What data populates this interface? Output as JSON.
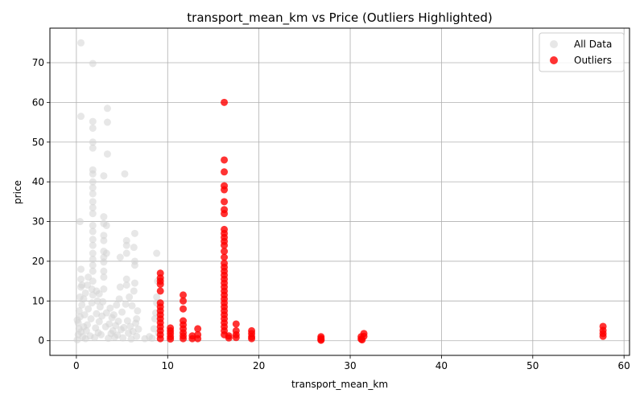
{
  "chart_data": {
    "type": "scatter",
    "title": "transport_mean_km vs Price (Outliers Highlighted)",
    "xlabel": "transport_mean_km",
    "ylabel": "price",
    "xlim": [
      -2.9,
      60.6
    ],
    "ylim": [
      -3.7,
      78.7
    ],
    "xticks": [
      0,
      10,
      20,
      30,
      40,
      50,
      60
    ],
    "yticks": [
      0,
      10,
      20,
      30,
      40,
      50,
      60,
      70
    ],
    "grid": true,
    "legend_position": "top-right",
    "series": [
      {
        "name": "All Data",
        "color": "#d3d3d3",
        "points": [
          [
            0.1,
            0.2
          ],
          [
            0.2,
            1.5
          ],
          [
            0.3,
            3.0
          ],
          [
            0.2,
            4.5
          ],
          [
            0.4,
            6.0
          ],
          [
            0.3,
            7.5
          ],
          [
            0.5,
            2.2
          ],
          [
            0.1,
            5.2
          ],
          [
            0.6,
            9.0
          ],
          [
            0.4,
            11.0
          ],
          [
            0.5,
            13.5
          ],
          [
            0.5,
            15.5
          ],
          [
            0.6,
            14.0
          ],
          [
            0.5,
            18.0
          ],
          [
            0.4,
            30.0
          ],
          [
            0.5,
            56.5
          ],
          [
            0.5,
            75.0
          ],
          [
            0.7,
            1.0
          ],
          [
            0.8,
            3.5
          ],
          [
            0.9,
            6.5
          ],
          [
            0.8,
            10.5
          ],
          [
            1.0,
            0.5
          ],
          [
            1.1,
            2.5
          ],
          [
            1.2,
            4.0
          ],
          [
            1.3,
            8.0
          ],
          [
            1.0,
            12.0
          ],
          [
            1.2,
            14.0
          ],
          [
            1.3,
            16.0
          ],
          [
            1.5,
            1.2
          ],
          [
            1.6,
            5.5
          ],
          [
            1.7,
            9.5
          ],
          [
            1.8,
            11.5
          ],
          [
            1.7,
            13.0
          ],
          [
            1.8,
            15.0
          ],
          [
            1.8,
            17.5
          ],
          [
            1.8,
            19.0
          ],
          [
            1.8,
            20.5
          ],
          [
            1.8,
            22.0
          ],
          [
            1.8,
            24.0
          ],
          [
            1.8,
            25.5
          ],
          [
            1.8,
            27.5
          ],
          [
            1.8,
            29.0
          ],
          [
            1.8,
            32.0
          ],
          [
            1.8,
            33.5
          ],
          [
            1.8,
            35.0
          ],
          [
            1.8,
            37.0
          ],
          [
            1.8,
            38.5
          ],
          [
            1.8,
            40.0
          ],
          [
            1.8,
            42.0
          ],
          [
            1.8,
            43.0
          ],
          [
            1.8,
            48.5
          ],
          [
            1.8,
            50.0
          ],
          [
            1.8,
            53.5
          ],
          [
            1.8,
            55.2
          ],
          [
            1.8,
            69.8
          ],
          [
            2.0,
            0.8
          ],
          [
            2.1,
            3.2
          ],
          [
            2.2,
            6.8
          ],
          [
            2.3,
            10.0
          ],
          [
            2.2,
            12.5
          ],
          [
            2.4,
            2.0
          ],
          [
            2.5,
            4.8
          ],
          [
            2.6,
            8.5
          ],
          [
            2.5,
            11.8
          ],
          [
            2.7,
            1.5
          ],
          [
            2.8,
            6.2
          ],
          [
            2.9,
            9.8
          ],
          [
            3.0,
            13.0
          ],
          [
            3.0,
            16.0
          ],
          [
            3.0,
            17.5
          ],
          [
            3.0,
            19.8
          ],
          [
            3.0,
            21.0
          ],
          [
            3.0,
            22.5
          ],
          [
            3.0,
            25.2
          ],
          [
            3.0,
            26.5
          ],
          [
            3.0,
            29.5
          ],
          [
            3.0,
            31.2
          ],
          [
            3.0,
            41.5
          ],
          [
            3.3,
            22.0
          ],
          [
            3.3,
            29.0
          ],
          [
            3.4,
            47.0
          ],
          [
            3.4,
            55.0
          ],
          [
            3.4,
            58.5
          ],
          [
            3.2,
            3.5
          ],
          [
            3.3,
            7.0
          ],
          [
            3.5,
            0.6
          ],
          [
            3.6,
            4.2
          ],
          [
            3.7,
            8.2
          ],
          [
            3.8,
            1.8
          ],
          [
            3.9,
            5.8
          ],
          [
            4.0,
            2.5
          ],
          [
            4.1,
            6.5
          ],
          [
            4.2,
            0.9
          ],
          [
            4.3,
            3.8
          ],
          [
            4.4,
            9.0
          ],
          [
            4.5,
            1.4
          ],
          [
            4.6,
            4.9
          ],
          [
            4.7,
            10.5
          ],
          [
            4.8,
            13.5
          ],
          [
            4.9,
            2.8
          ],
          [
            4.8,
            21.0
          ],
          [
            5.0,
            7.2
          ],
          [
            5.1,
            0.7
          ],
          [
            5.2,
            3.3
          ],
          [
            5.3,
            42.0
          ],
          [
            5.4,
            9.2
          ],
          [
            5.5,
            15.5
          ],
          [
            5.5,
            14.0
          ],
          [
            5.5,
            24.0
          ],
          [
            5.5,
            25.2
          ],
          [
            5.5,
            22.0
          ],
          [
            5.6,
            5.0
          ],
          [
            5.7,
            1.9
          ],
          [
            5.8,
            11.0
          ],
          [
            5.9,
            3.6
          ],
          [
            6.0,
            0.4
          ],
          [
            6.1,
            8.8
          ],
          [
            6.2,
            2.3
          ],
          [
            6.3,
            12.5
          ],
          [
            6.4,
            27.0
          ],
          [
            6.3,
            23.5
          ],
          [
            6.4,
            20.0
          ],
          [
            6.4,
            19.0
          ],
          [
            6.4,
            14.5
          ],
          [
            6.5,
            4.4
          ],
          [
            6.6,
            1.1
          ],
          [
            6.7,
            7.5
          ],
          [
            6.6,
            5.5
          ],
          [
            6.8,
            2.9
          ],
          [
            7.5,
            0.5
          ],
          [
            8.0,
            1.0
          ],
          [
            8.3,
            0.6
          ],
          [
            8.5,
            3.0
          ],
          [
            8.6,
            5.5
          ],
          [
            8.7,
            7.0
          ],
          [
            8.8,
            9.5
          ],
          [
            8.8,
            11.0
          ],
          [
            8.9,
            15.0
          ],
          [
            8.8,
            22.0
          ],
          [
            9.0,
            1.8
          ]
        ]
      },
      {
        "name": "Outliers",
        "color": "#ff0000",
        "points": [
          [
            9.2,
            17.0
          ],
          [
            9.2,
            15.8
          ],
          [
            9.2,
            15.0
          ],
          [
            9.2,
            14.2
          ],
          [
            9.2,
            12.5
          ],
          [
            9.2,
            9.5
          ],
          [
            9.2,
            8.5
          ],
          [
            9.2,
            7.5
          ],
          [
            9.2,
            6.5
          ],
          [
            9.2,
            5.5
          ],
          [
            9.2,
            4.5
          ],
          [
            9.2,
            3.5
          ],
          [
            9.2,
            2.5
          ],
          [
            9.2,
            1.5
          ],
          [
            9.2,
            0.5
          ],
          [
            10.3,
            3.2
          ],
          [
            10.3,
            2.5
          ],
          [
            10.3,
            1.8
          ],
          [
            10.3,
            1.0
          ],
          [
            10.3,
            0.4
          ],
          [
            11.7,
            11.5
          ],
          [
            11.7,
            10.0
          ],
          [
            11.7,
            8.0
          ],
          [
            11.7,
            5.0
          ],
          [
            11.7,
            4.0
          ],
          [
            11.7,
            3.0
          ],
          [
            11.7,
            2.0
          ],
          [
            11.7,
            1.2
          ],
          [
            11.7,
            0.5
          ],
          [
            12.7,
            1.2
          ],
          [
            12.7,
            0.5
          ],
          [
            13.3,
            3.0
          ],
          [
            13.3,
            1.5
          ],
          [
            13.3,
            0.5
          ],
          [
            16.2,
            60.0
          ],
          [
            16.2,
            45.5
          ],
          [
            16.2,
            42.5
          ],
          [
            16.2,
            39.0
          ],
          [
            16.2,
            38.0
          ],
          [
            16.2,
            35.0
          ],
          [
            16.2,
            33.0
          ],
          [
            16.2,
            32.0
          ],
          [
            16.2,
            28.0
          ],
          [
            16.2,
            27.0
          ],
          [
            16.2,
            26.0
          ],
          [
            16.2,
            25.0
          ],
          [
            16.2,
            24.0
          ],
          [
            16.2,
            22.5
          ],
          [
            16.2,
            21.0
          ],
          [
            16.2,
            19.5
          ],
          [
            16.2,
            18.5
          ],
          [
            16.2,
            17.5
          ],
          [
            16.2,
            16.5
          ],
          [
            16.2,
            15.5
          ],
          [
            16.2,
            14.5
          ],
          [
            16.2,
            13.5
          ],
          [
            16.2,
            12.5
          ],
          [
            16.2,
            11.5
          ],
          [
            16.2,
            10.5
          ],
          [
            16.2,
            9.5
          ],
          [
            16.2,
            8.5
          ],
          [
            16.2,
            7.5
          ],
          [
            16.2,
            6.5
          ],
          [
            16.2,
            5.5
          ],
          [
            16.2,
            4.5
          ],
          [
            16.2,
            3.5
          ],
          [
            16.2,
            2.5
          ],
          [
            16.2,
            1.5
          ],
          [
            16.7,
            1.2
          ],
          [
            16.7,
            0.7
          ],
          [
            17.5,
            4.2
          ],
          [
            17.5,
            2.5
          ],
          [
            17.5,
            1.5
          ],
          [
            17.5,
            0.8
          ],
          [
            19.2,
            2.5
          ],
          [
            19.2,
            1.8
          ],
          [
            19.2,
            1.0
          ],
          [
            19.2,
            0.5
          ],
          [
            26.8,
            1.0
          ],
          [
            26.8,
            0.6
          ],
          [
            26.8,
            0.3
          ],
          [
            26.8,
            0.1
          ],
          [
            31.2,
            1.0
          ],
          [
            31.2,
            0.4
          ],
          [
            31.5,
            1.8
          ],
          [
            31.5,
            1.1
          ],
          [
            31.3,
            0.2
          ],
          [
            57.7,
            3.6
          ],
          [
            57.7,
            2.6
          ],
          [
            57.7,
            1.8
          ],
          [
            57.7,
            1.1
          ]
        ]
      }
    ]
  }
}
